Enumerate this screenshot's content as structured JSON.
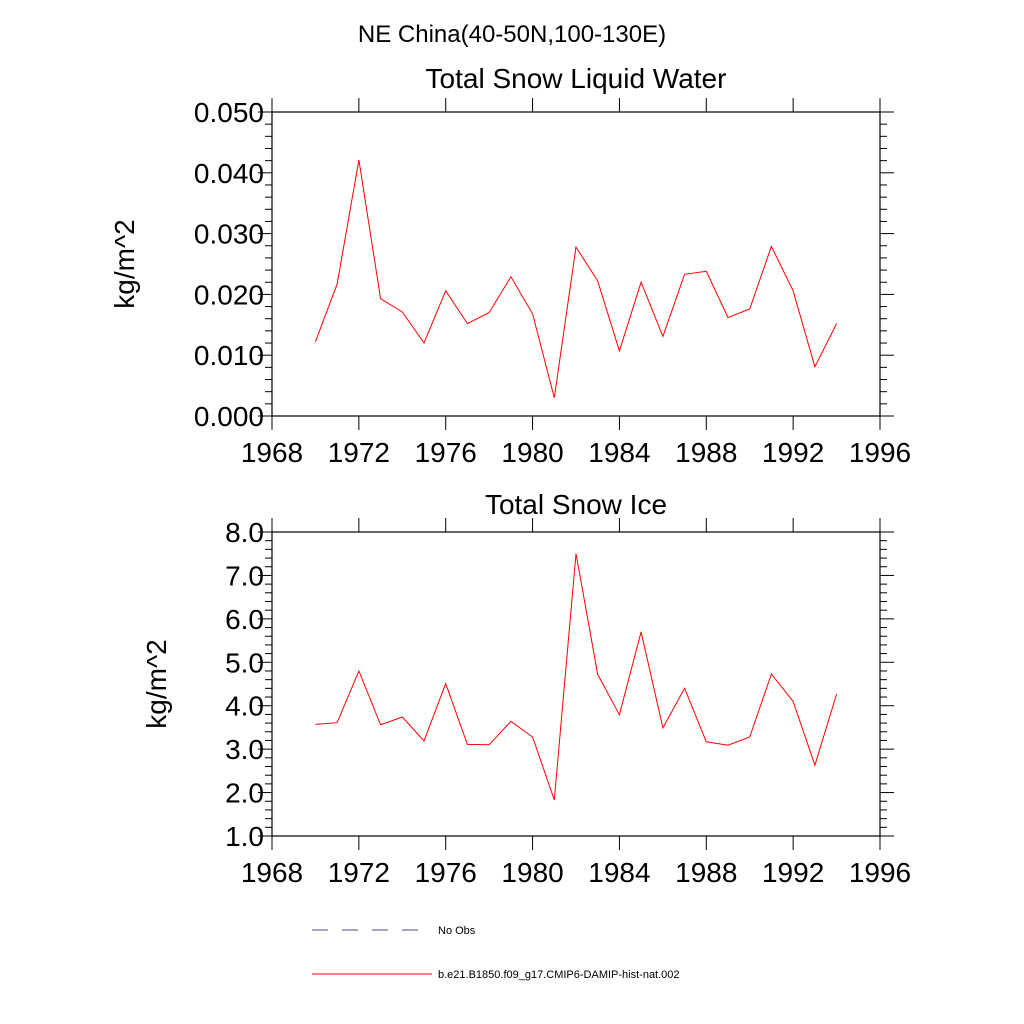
{
  "figure": {
    "title": "NE China(40-50N,100-130E)"
  },
  "chart_data": [
    {
      "type": "line",
      "title": "Total Snow Liquid Water",
      "xlabel": "",
      "ylabel": "kg/m^2",
      "xlim": [
        1968,
        1996
      ],
      "ylim": [
        0.0,
        0.05
      ],
      "xticks": [
        1968,
        1972,
        1976,
        1980,
        1984,
        1988,
        1992,
        1996
      ],
      "xtick_labels": [
        "1968",
        "1972",
        "1976",
        "1980",
        "1984",
        "1988",
        "1992",
        "1996"
      ],
      "yticks": [
        0.0,
        0.01,
        0.02,
        0.03,
        0.04,
        0.05
      ],
      "ytick_labels": [
        "0.000",
        "0.010",
        "0.020",
        "0.030",
        "0.040",
        "0.050"
      ],
      "grid": false,
      "x": [
        1970,
        1971,
        1972,
        1973,
        1974,
        1975,
        1976,
        1977,
        1978,
        1979,
        1980,
        1981,
        1982,
        1983,
        1984,
        1985,
        1986,
        1987,
        1988,
        1989,
        1990,
        1991,
        1992,
        1993,
        1994
      ],
      "series": [
        {
          "name": "b.e21.B1850.f09_g17.CMIP6-DAMIP-hist-nat.002",
          "color": "#ff0000",
          "values": [
            0.0122,
            0.0217,
            0.0421,
            0.0193,
            0.0171,
            0.012,
            0.0206,
            0.0152,
            0.017,
            0.0229,
            0.0168,
            0.003,
            0.0278,
            0.0222,
            0.0107,
            0.022,
            0.0131,
            0.0233,
            0.0238,
            0.0162,
            0.0176,
            0.0279,
            0.0206,
            0.0081,
            0.0152
          ]
        }
      ]
    },
    {
      "type": "line",
      "title": "Total Snow Ice",
      "xlabel": "",
      "ylabel": "kg/m^2",
      "xlim": [
        1968,
        1996
      ],
      "ylim": [
        1.0,
        8.0
      ],
      "xticks": [
        1968,
        1972,
        1976,
        1980,
        1984,
        1988,
        1992,
        1996
      ],
      "xtick_labels": [
        "1968",
        "1972",
        "1976",
        "1980",
        "1984",
        "1988",
        "1992",
        "1996"
      ],
      "yticks": [
        1.0,
        2.0,
        3.0,
        4.0,
        5.0,
        6.0,
        7.0,
        8.0
      ],
      "ytick_labels": [
        "1.0",
        "2.0",
        "3.0",
        "4.0",
        "5.0",
        "6.0",
        "7.0",
        "8.0"
      ],
      "grid": false,
      "x": [
        1970,
        1971,
        1972,
        1973,
        1974,
        1975,
        1976,
        1977,
        1978,
        1979,
        1980,
        1981,
        1982,
        1983,
        1984,
        1985,
        1986,
        1987,
        1988,
        1989,
        1990,
        1991,
        1992,
        1993,
        1994
      ],
      "series": [
        {
          "name": "b.e21.B1850.f09_g17.CMIP6-DAMIP-hist-nat.002",
          "color": "#ff0000",
          "values": [
            3.57,
            3.61,
            4.8,
            3.56,
            3.74,
            3.19,
            4.51,
            3.11,
            3.1,
            3.64,
            3.28,
            1.83,
            7.5,
            4.72,
            3.79,
            5.7,
            3.49,
            4.4,
            3.17,
            3.09,
            3.28,
            4.73,
            4.1,
            2.63,
            4.27
          ]
        }
      ]
    }
  ],
  "legend": {
    "position": "bottom",
    "entries": [
      {
        "label": "No Obs",
        "color": "#4a4a8a",
        "style": "dashed"
      },
      {
        "label": "b.e21.B1850.f09_g17.CMIP6-DAMIP-hist-nat.002",
        "color": "#ff0000",
        "style": "solid"
      }
    ]
  }
}
